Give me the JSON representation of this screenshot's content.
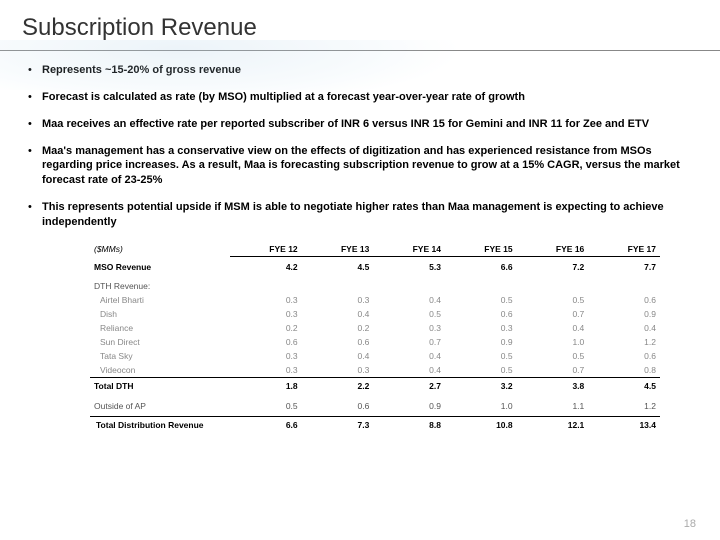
{
  "title": "Subscription Revenue",
  "bullets": [
    "Represents ~15-20% of gross revenue",
    "Forecast is calculated as rate (by MSO) multiplied at a forecast year-over-year rate of growth",
    "Maa receives an effective rate per reported subscriber of INR 6 versus INR 15 for Gemini and INR 11 for Zee and ETV",
    "Maa's management has a conservative view on the effects of digitization and has experienced resistance from MSOs regarding price increases.  As a result, Maa is forecasting subscription revenue to grow at a 15% CAGR, versus the market forecast rate of 23-25%",
    "This represents potential upside if MSM is able to negotiate higher rates than Maa management is expecting to achieve independently"
  ],
  "table": {
    "unit_label": "($MMs)",
    "headers": [
      "FYE 12",
      "FYE 13",
      "FYE 14",
      "FYE 15",
      "FYE 16",
      "FYE 17"
    ],
    "mso": {
      "label": "MSO Revenue",
      "vals": [
        "4.2",
        "4.5",
        "5.3",
        "6.6",
        "7.2",
        "7.7"
      ]
    },
    "dth_section": "DTH Revenue:",
    "providers": [
      {
        "label": "Airtel Bharti",
        "vals": [
          "0.3",
          "0.3",
          "0.4",
          "0.5",
          "0.5",
          "0.6"
        ]
      },
      {
        "label": "Dish",
        "vals": [
          "0.3",
          "0.4",
          "0.5",
          "0.6",
          "0.7",
          "0.9"
        ]
      },
      {
        "label": "Reliance",
        "vals": [
          "0.2",
          "0.2",
          "0.3",
          "0.3",
          "0.4",
          "0.4"
        ]
      },
      {
        "label": "Sun Direct",
        "vals": [
          "0.6",
          "0.6",
          "0.7",
          "0.9",
          "1.0",
          "1.2"
        ]
      },
      {
        "label": "Tata Sky",
        "vals": [
          "0.3",
          "0.4",
          "0.4",
          "0.5",
          "0.5",
          "0.6"
        ]
      },
      {
        "label": "Videocon",
        "vals": [
          "0.3",
          "0.3",
          "0.4",
          "0.5",
          "0.7",
          "0.8"
        ]
      }
    ],
    "total_dth": {
      "label": "Total DTH",
      "vals": [
        "1.8",
        "2.2",
        "2.7",
        "3.2",
        "3.8",
        "4.5"
      ]
    },
    "outside": {
      "label": "Outside of AP",
      "vals": [
        "0.5",
        "0.6",
        "0.9",
        "1.0",
        "1.1",
        "1.2"
      ]
    },
    "grand": {
      "label": "Total Distribution Revenue",
      "vals": [
        "6.6",
        "7.3",
        "8.8",
        "10.8",
        "12.1",
        "13.4"
      ]
    }
  },
  "page_number": "18"
}
